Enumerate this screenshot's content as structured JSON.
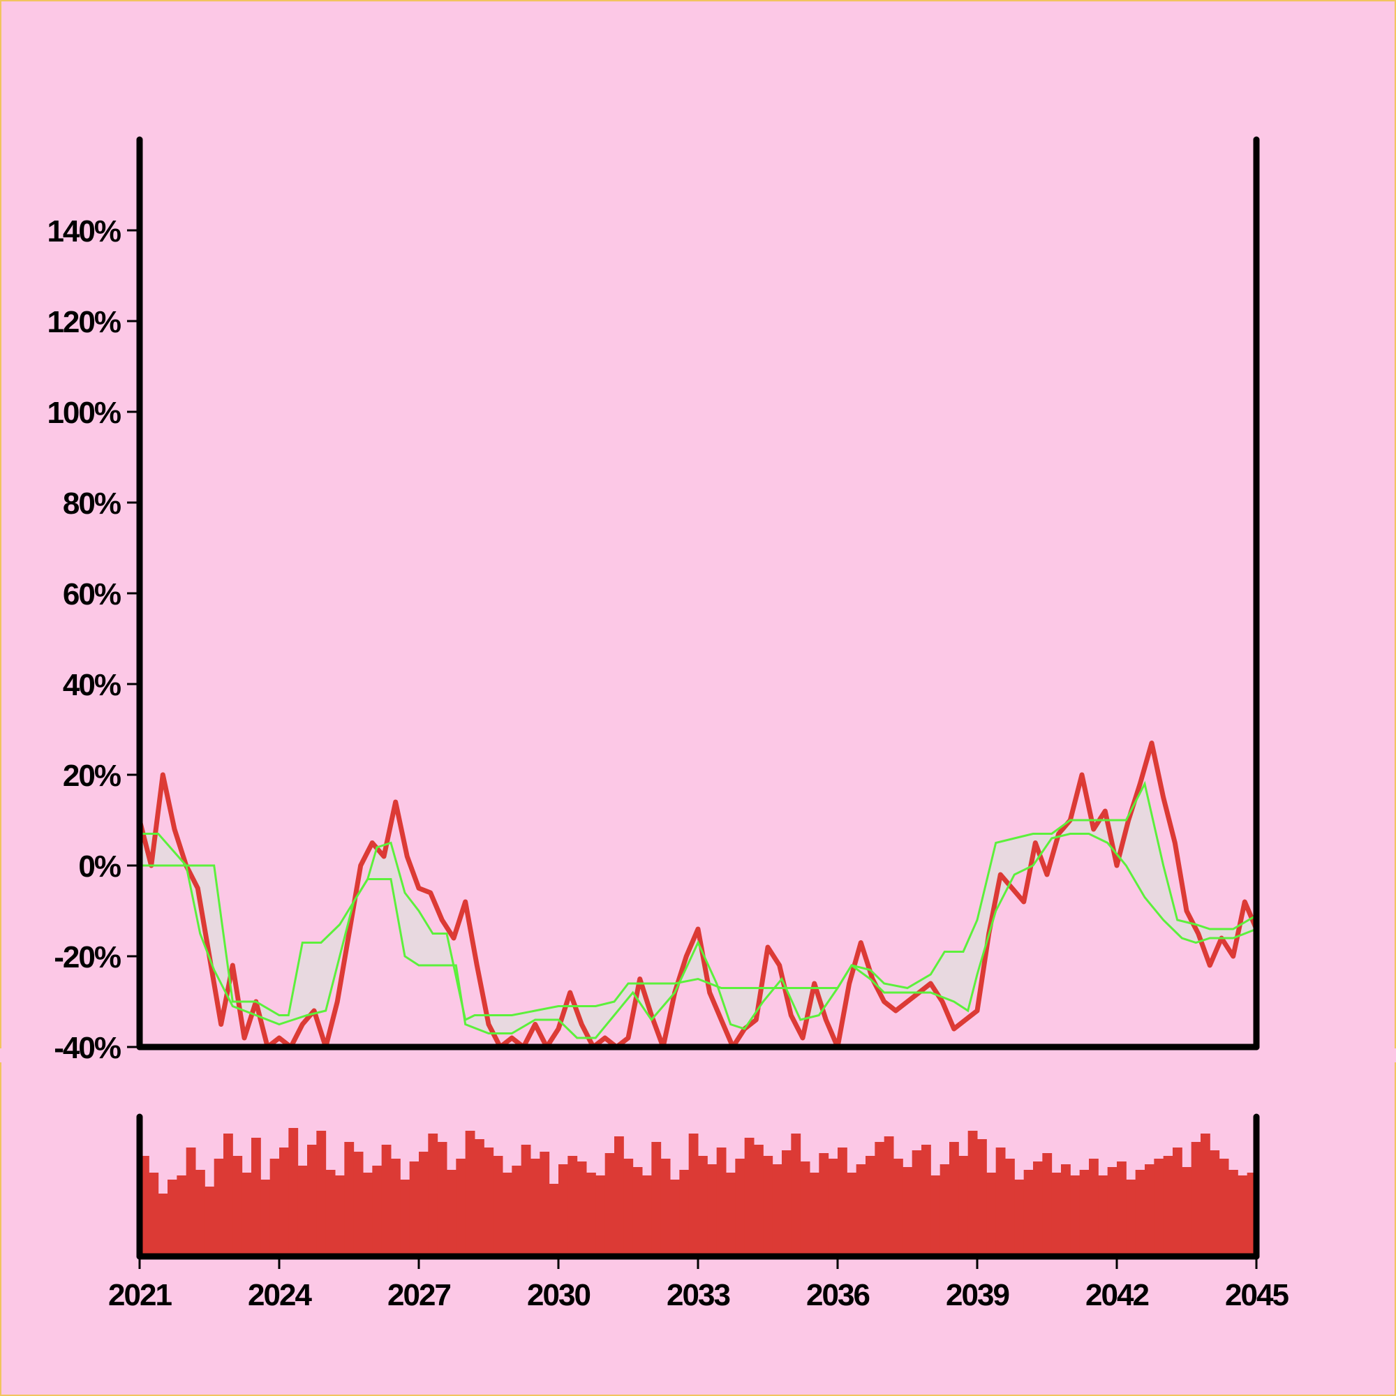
{
  "colors": {
    "background": "#fcc8e6",
    "price": "#dc3a35",
    "band": "#5cf03c",
    "band_fill": "#e6dadf",
    "volume": "#dc3a35",
    "axis": "#000000"
  },
  "chart_data": [
    {
      "type": "line",
      "title": "",
      "xlabel": "",
      "ylabel": "",
      "xlim": [
        2021,
        2045
      ],
      "ylim": [
        -40,
        160
      ],
      "y_ticks": [
        {
          "value": -40,
          "label": "-40%"
        },
        {
          "value": -20,
          "label": "-20%"
        },
        {
          "value": 0,
          "label": "0%"
        },
        {
          "value": 20,
          "label": "20%"
        },
        {
          "value": 40,
          "label": "40%"
        },
        {
          "value": 60,
          "label": "60%"
        },
        {
          "value": 80,
          "label": "80%"
        },
        {
          "value": 100,
          "label": "100%"
        },
        {
          "value": 120,
          "label": "120%"
        },
        {
          "value": 140,
          "label": "140%"
        }
      ],
      "grid": false,
      "legend": "none",
      "series": [
        {
          "role": "price",
          "x": [
            2021.0,
            2021.25,
            2021.5,
            2021.75,
            2022.0,
            2022.25,
            2022.5,
            2022.75,
            2023.0,
            2023.25,
            2023.5,
            2023.75,
            2024.0,
            2024.25,
            2024.5,
            2024.75,
            2025.0,
            2025.25,
            2025.5,
            2025.75,
            2026.0,
            2026.25,
            2026.5,
            2026.75,
            2027.0,
            2027.25,
            2027.5,
            2027.75,
            2028.0,
            2028.25,
            2028.5,
            2028.75,
            2029.0,
            2029.25,
            2029.5,
            2029.75,
            2030.0,
            2030.25,
            2030.5,
            2030.75,
            2031.0,
            2031.25,
            2031.5,
            2031.75,
            2032.0,
            2032.25,
            2032.5,
            2032.75,
            2033.0,
            2033.25,
            2033.5,
            2033.75,
            2034.0,
            2034.25,
            2034.5,
            2034.75,
            2035.0,
            2035.25,
            2035.5,
            2035.75,
            2036.0,
            2036.25,
            2036.5,
            2036.75,
            2037.0,
            2037.25,
            2037.5,
            2037.75,
            2038.0,
            2038.25,
            2038.5,
            2038.75,
            2039.0,
            2039.25,
            2039.5,
            2039.75,
            2040.0,
            2040.25,
            2040.5,
            2040.75,
            2041.0,
            2041.25,
            2041.5,
            2041.75,
            2042.0,
            2042.25,
            2042.5,
            2042.75,
            2043.0,
            2043.25,
            2043.5,
            2043.75,
            2044.0,
            2044.25,
            2044.5,
            2044.75,
            2045.0
          ],
          "values": [
            10,
            0,
            20,
            8,
            0,
            -5,
            -20,
            -35,
            -22,
            -38,
            -30,
            -40,
            -38,
            -40,
            -35,
            -32,
            -40,
            -30,
            -15,
            0,
            5,
            2,
            14,
            2,
            -5,
            -6,
            -12,
            -16,
            -8,
            -22,
            -35,
            -40,
            -38,
            -40,
            -35,
            -40,
            -36,
            -28,
            -35,
            -40,
            -38,
            -40,
            -38,
            -25,
            -33,
            -40,
            -28,
            -20,
            -14,
            -28,
            -34,
            -40,
            -36,
            -34,
            -18,
            -22,
            -33,
            -38,
            -26,
            -34,
            -40,
            -26,
            -17,
            -25,
            -30,
            -32,
            -30,
            -28,
            -26,
            -30,
            -36,
            -34,
            -32,
            -15,
            -2,
            -5,
            -8,
            5,
            -2,
            7,
            10,
            20,
            8,
            12,
            0,
            10,
            18,
            27,
            15,
            5,
            -10,
            -15,
            -22,
            -16,
            -20,
            -8,
            -14
          ]
        },
        {
          "role": "band_upper",
          "x": [
            2021.0,
            2021.4,
            2022.0,
            2022.5,
            2022.6,
            2023.0,
            2023.5,
            2024.0,
            2024.2,
            2024.5,
            2024.9,
            2025.3,
            2025.6,
            2025.9,
            2026.1,
            2026.4,
            2026.7,
            2027.0,
            2027.3,
            2027.6,
            2028.0,
            2028.2,
            2028.5,
            2029.0,
            2029.5,
            2030.0,
            2030.4,
            2030.8,
            2031.2,
            2031.5,
            2032.0,
            2032.5,
            2033.0,
            2033.5,
            2034.0,
            2034.5,
            2035.0,
            2035.5,
            2036.0,
            2036.3,
            2036.7,
            2037.0,
            2037.5,
            2038.0,
            2038.3,
            2038.7,
            2039.0,
            2039.4,
            2039.8,
            2040.2,
            2040.6,
            2041.0,
            2041.4,
            2041.8,
            2042.2,
            2042.6,
            2043.0,
            2043.3,
            2043.7,
            2044.0,
            2044.5,
            2045.0
          ],
          "values": [
            7,
            7,
            0,
            0,
            0,
            -30,
            -30,
            -33,
            -33,
            -17,
            -17,
            -13,
            -8,
            -3,
            4,
            5,
            -6,
            -10,
            -15,
            -15,
            -34,
            -33,
            -33,
            -33,
            -32,
            -31,
            -31,
            -31,
            -30,
            -26,
            -26,
            -26,
            -25,
            -27,
            -27,
            -27,
            -27,
            -27,
            -27,
            -22,
            -23,
            -26,
            -27,
            -24,
            -19,
            -19,
            -12,
            5,
            6,
            7,
            7,
            10,
            10,
            10,
            10,
            18,
            0,
            -12,
            -13,
            -14,
            -14,
            -11
          ]
        },
        {
          "role": "band_lower",
          "x": [
            2021.0,
            2021.4,
            2021.6,
            2022.0,
            2022.3,
            2022.6,
            2023.0,
            2023.5,
            2024.0,
            2024.3,
            2024.6,
            2025.0,
            2025.3,
            2025.6,
            2025.9,
            2026.1,
            2026.4,
            2026.7,
            2027.0,
            2027.4,
            2027.8,
            2028.0,
            2028.5,
            2029.0,
            2029.5,
            2030.0,
            2030.4,
            2030.8,
            2031.2,
            2031.6,
            2032.0,
            2032.5,
            2033.0,
            2033.4,
            2033.7,
            2034.0,
            2034.4,
            2034.8,
            2035.2,
            2035.6,
            2036.0,
            2036.3,
            2036.7,
            2037.0,
            2037.5,
            2038.0,
            2038.5,
            2038.8,
            2039.0,
            2039.4,
            2039.8,
            2040.2,
            2040.6,
            2041.0,
            2041.4,
            2041.8,
            2042.2,
            2042.6,
            2043.0,
            2043.4,
            2043.7,
            2044.0,
            2044.5,
            2045.0
          ],
          "values": [
            0,
            0,
            0,
            0,
            -15,
            -23,
            -31,
            -33,
            -35,
            -34,
            -33,
            -32,
            -20,
            -8,
            -3,
            -3,
            -3,
            -20,
            -22,
            -22,
            -22,
            -35,
            -37,
            -37,
            -34,
            -34,
            -38,
            -38,
            -33,
            -28,
            -34,
            -28,
            -17,
            -26,
            -35,
            -36,
            -30,
            -25,
            -34,
            -33,
            -27,
            -22,
            -25,
            -28,
            -28,
            -28,
            -30,
            -32,
            -24,
            -10,
            -2,
            0,
            6,
            7,
            7,
            5,
            0,
            -7,
            -12,
            -16,
            -17,
            -16,
            -16,
            -14
          ]
        }
      ]
    },
    {
      "type": "bar",
      "title": "",
      "xlabel": "",
      "ylabel": "",
      "xlim": [
        2021,
        2045
      ],
      "ylim": [
        0,
        100
      ],
      "x_ticks": [
        {
          "value": 2021,
          "label": "2021"
        },
        {
          "value": 2024,
          "label": "2024"
        },
        {
          "value": 2027,
          "label": "2027"
        },
        {
          "value": 2030,
          "label": "2030"
        },
        {
          "value": 2033,
          "label": "2033"
        },
        {
          "value": 2036,
          "label": "2036"
        },
        {
          "value": 2039,
          "label": "2039"
        },
        {
          "value": 2042,
          "label": "2042"
        },
        {
          "value": 2045,
          "label": "2045"
        }
      ],
      "grid": false,
      "legend": "none",
      "x": [
        2021.0,
        2021.2,
        2021.4,
        2021.6,
        2021.8,
        2022.0,
        2022.2,
        2022.4,
        2022.6,
        2022.8,
        2023.0,
        2023.2,
        2023.4,
        2023.6,
        2023.8,
        2024.0,
        2024.2,
        2024.4,
        2024.6,
        2024.8,
        2025.0,
        2025.2,
        2025.4,
        2025.6,
        2025.8,
        2026.0,
        2026.2,
        2026.4,
        2026.6,
        2026.8,
        2027.0,
        2027.2,
        2027.4,
        2027.6,
        2027.8,
        2028.0,
        2028.2,
        2028.4,
        2028.6,
        2028.8,
        2029.0,
        2029.2,
        2029.4,
        2029.6,
        2029.8,
        2030.0,
        2030.2,
        2030.4,
        2030.6,
        2030.8,
        2031.0,
        2031.2,
        2031.4,
        2031.6,
        2031.8,
        2032.0,
        2032.2,
        2032.4,
        2032.6,
        2032.8,
        2033.0,
        2033.2,
        2033.4,
        2033.6,
        2033.8,
        2034.0,
        2034.2,
        2034.4,
        2034.6,
        2034.8,
        2035.0,
        2035.2,
        2035.4,
        2035.6,
        2035.8,
        2036.0,
        2036.2,
        2036.4,
        2036.6,
        2036.8,
        2037.0,
        2037.2,
        2037.4,
        2037.6,
        2037.8,
        2038.0,
        2038.2,
        2038.4,
        2038.6,
        2038.8,
        2039.0,
        2039.2,
        2039.4,
        2039.6,
        2039.8,
        2040.0,
        2040.2,
        2040.4,
        2040.6,
        2040.8,
        2041.0,
        2041.2,
        2041.4,
        2041.6,
        2041.8,
        2042.0,
        2042.2,
        2042.4,
        2042.6,
        2042.8,
        2043.0,
        2043.2,
        2043.4,
        2043.6,
        2043.8,
        2044.0,
        2044.2,
        2044.4,
        2044.6,
        2044.8
      ],
      "values": [
        72,
        60,
        45,
        55,
        58,
        78,
        62,
        50,
        70,
        88,
        72,
        60,
        85,
        55,
        70,
        78,
        92,
        65,
        80,
        90,
        62,
        58,
        82,
        75,
        60,
        65,
        80,
        70,
        55,
        68,
        75,
        88,
        82,
        62,
        70,
        90,
        84,
        78,
        72,
        60,
        65,
        80,
        70,
        75,
        52,
        66,
        72,
        68,
        60,
        58,
        74,
        86,
        70,
        64,
        58,
        82,
        70,
        55,
        62,
        88,
        72,
        66,
        78,
        60,
        70,
        85,
        80,
        72,
        66,
        76,
        88,
        68,
        60,
        74,
        70,
        78,
        60,
        66,
        72,
        82,
        86,
        70,
        64,
        76,
        80,
        58,
        66,
        82,
        72,
        90,
        84,
        60,
        78,
        70,
        55,
        62,
        68,
        74,
        60,
        66,
        58,
        62,
        70,
        58,
        64,
        68,
        55,
        62,
        66,
        70,
        72,
        78,
        64,
        82,
        88,
        76,
        70,
        62,
        58,
        60
      ]
    }
  ]
}
